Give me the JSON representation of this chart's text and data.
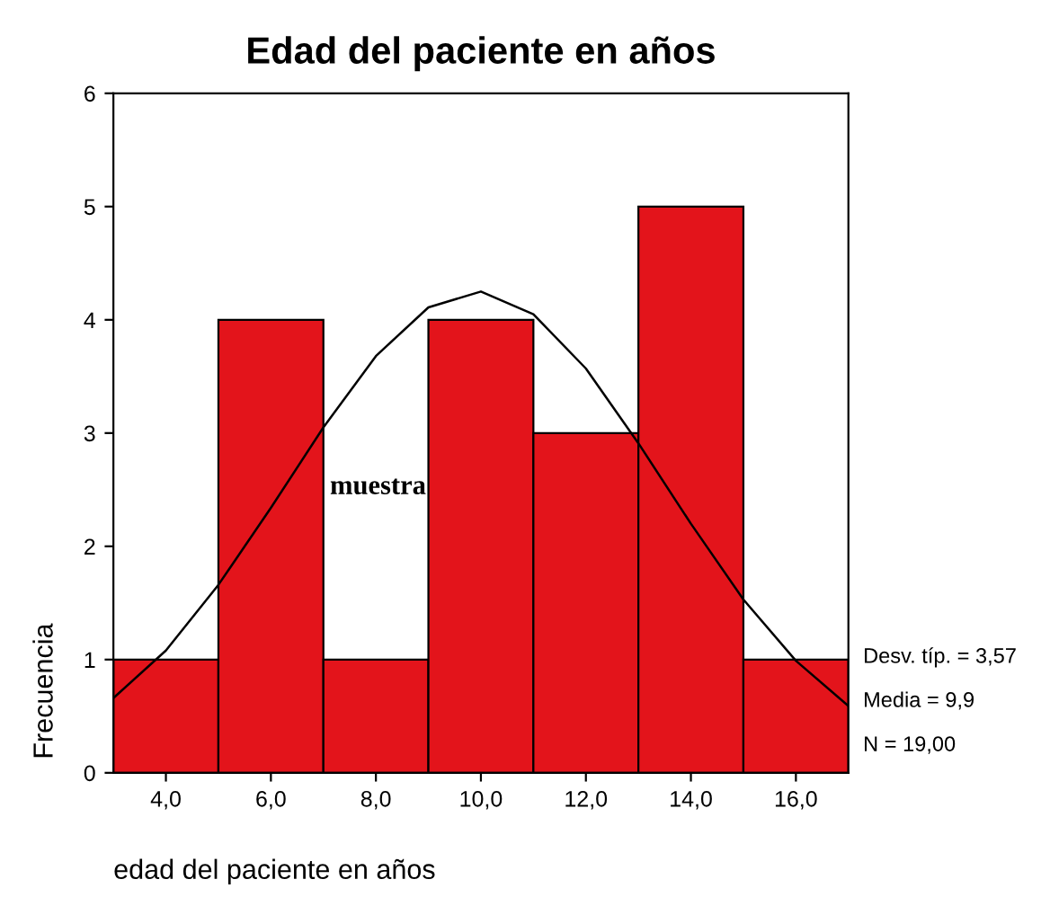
{
  "chart_data": {
    "type": "histogram",
    "title": "Edad del paciente en años",
    "xlabel": "edad del paciente en años",
    "ylabel": "Frecuencia",
    "bins": [
      3,
      5,
      7,
      9,
      11,
      13,
      15,
      17
    ],
    "values": [
      1,
      4,
      1,
      4,
      3,
      5,
      1
    ],
    "color": "#e3141b",
    "series": [
      {
        "type": "line",
        "color": "#000000",
        "x": [
          3,
          4,
          5,
          6,
          7,
          8,
          9,
          10,
          11,
          12,
          13,
          14,
          15,
          16,
          17
        ],
        "values": [
          0.66,
          1.08,
          1.66,
          2.34,
          3.05,
          3.68,
          4.11,
          4.25,
          4.05,
          3.57,
          2.91,
          2.2,
          1.53,
          0.99,
          0.59
        ]
      }
    ],
    "xlim": [
      3,
      17
    ],
    "xticks": [
      {
        "value": 4,
        "label": "4,0"
      },
      {
        "value": 6,
        "label": "6,0"
      },
      {
        "value": 8,
        "label": "8,0"
      },
      {
        "value": 10,
        "label": "10,0"
      },
      {
        "value": 12,
        "label": "12,0"
      },
      {
        "value": 14,
        "label": "14,0"
      },
      {
        "value": 16,
        "label": "16,0"
      }
    ],
    "ylim": [
      0,
      6
    ],
    "yticks": [
      0,
      1,
      2,
      3,
      4,
      5,
      6
    ],
    "annotations": [
      "muestra",
      "Desv. típ. = 3,57",
      "Media = 9,9",
      "N = 19,00"
    ],
    "grid": false,
    "legend": false
  }
}
